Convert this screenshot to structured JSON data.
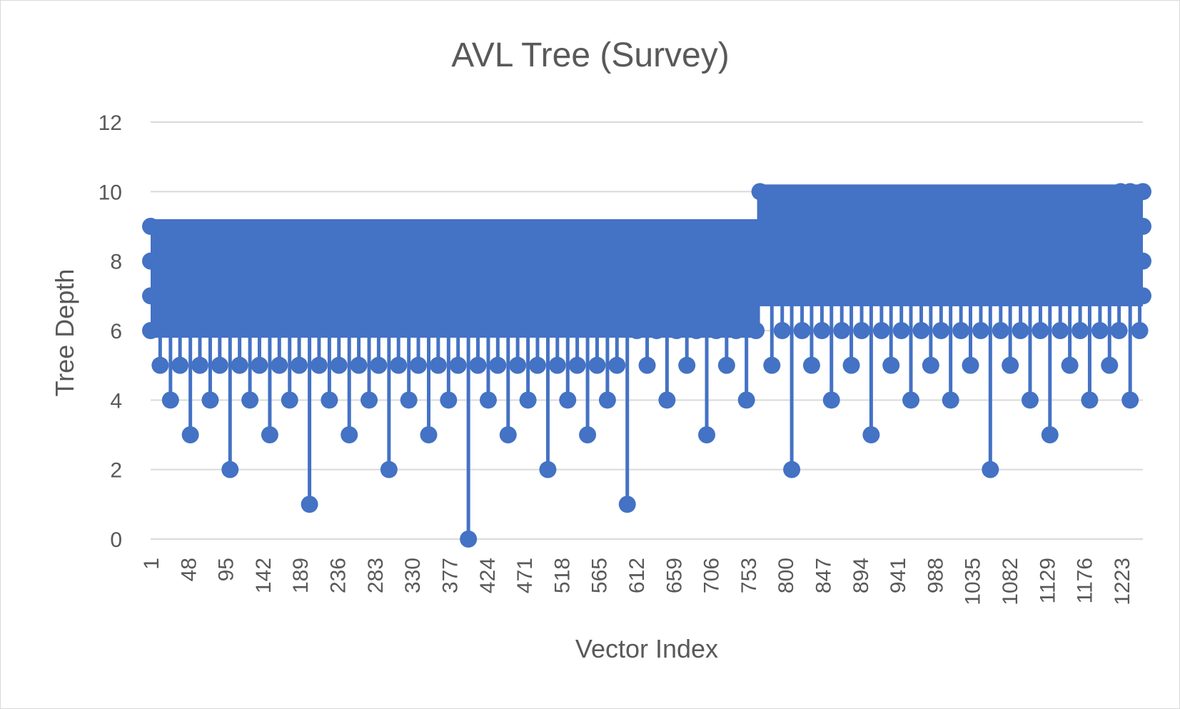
{
  "chart_data": {
    "type": "line",
    "title": "AVL Tree (Survey)",
    "xlabel": "Vector Index",
    "ylabel": "Tree Depth",
    "ylim": [
      0,
      12
    ],
    "yticks": [
      "0",
      "2",
      "4",
      "6",
      "8",
      "10",
      "12"
    ],
    "xticks": [
      "1",
      "48",
      "95",
      "142",
      "189",
      "236",
      "283",
      "330",
      "377",
      "424",
      "471",
      "518",
      "565",
      "612",
      "659",
      "706",
      "753",
      "800",
      "847",
      "894",
      "941",
      "988",
      "1035",
      "1082",
      "1129",
      "1176",
      "1223"
    ],
    "x_range": [
      1,
      1250
    ],
    "grid": true,
    "legend": "none",
    "series_color": "#4472C4",
    "marker": "circle",
    "series": [
      {
        "values_description": "AVL tree depth of each inserted vector; dense band between 6 and 9 for indices 1–763, between 6 and 10 for indices 764–1250, with periodic dips to 5, 4, 3, 2, 1 and a single 0 at the root.",
        "x": [
          1,
          13,
          26,
          38,
          51,
          63,
          76,
          88,
          101,
          113,
          126,
          138,
          151,
          163,
          176,
          188,
          201,
          213,
          226,
          238,
          251,
          263,
          276,
          288,
          301,
          313,
          326,
          338,
          351,
          363,
          376,
          388,
          401,
          413,
          426,
          438,
          451,
          463,
          476,
          488,
          501,
          513,
          526,
          538,
          551,
          563,
          576,
          588,
          601,
          613,
          626,
          638,
          651,
          663,
          676,
          688,
          701,
          713,
          726,
          738,
          751,
          763,
          783,
          796,
          808,
          821,
          833,
          846,
          858,
          871,
          883,
          896,
          908,
          921,
          933,
          946,
          958,
          971,
          983,
          996,
          1008,
          1021,
          1033,
          1046,
          1058,
          1071,
          1083,
          1096,
          1108,
          1121,
          1133,
          1146,
          1158,
          1171,
          1183,
          1196,
          1208,
          1220,
          1234,
          1246
        ],
        "y": [
          6,
          5,
          4,
          5,
          3,
          5,
          4,
          5,
          2,
          5,
          4,
          5,
          3,
          5,
          4,
          5,
          1,
          5,
          4,
          5,
          3,
          5,
          4,
          5,
          2,
          5,
          4,
          5,
          3,
          5,
          4,
          5,
          0,
          5,
          4,
          5,
          3,
          5,
          4,
          5,
          2,
          5,
          4,
          5,
          3,
          5,
          4,
          5,
          1,
          6,
          5,
          6,
          4,
          6,
          5,
          6,
          3,
          6,
          5,
          6,
          4,
          6,
          5,
          6,
          2,
          6,
          5,
          6,
          4,
          6,
          5,
          6,
          3,
          6,
          5,
          6,
          4,
          6,
          5,
          6,
          4,
          6,
          5,
          6,
          2,
          6,
          5,
          6,
          4,
          6,
          3,
          6,
          5,
          6,
          4,
          6,
          5,
          6,
          4,
          6
        ]
      }
    ]
  }
}
